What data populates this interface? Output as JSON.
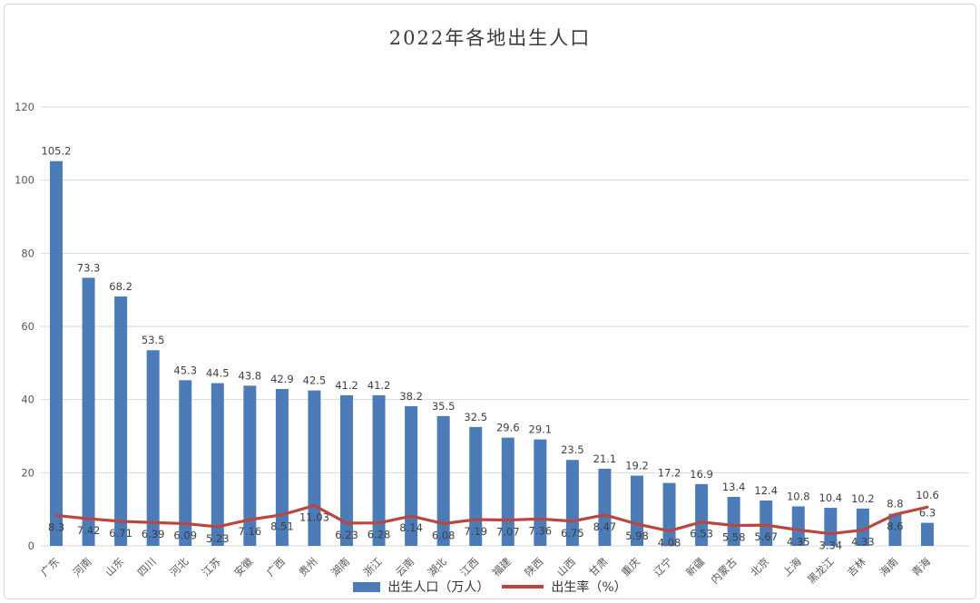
{
  "chart_data": {
    "type": "bar",
    "title": "2022年各地出生人口",
    "categories": [
      "广东",
      "河南",
      "山东",
      "四川",
      "河北",
      "江苏",
      "安徽",
      "广西",
      "贵州",
      "湖南",
      "浙江",
      "云南",
      "湖北",
      "江西",
      "福建",
      "陕西",
      "山西",
      "甘肃",
      "重庆",
      "辽宁",
      "新疆",
      "内蒙古",
      "北京",
      "上海",
      "黑龙江",
      "吉林",
      "海南",
      "青海"
    ],
    "series": [
      {
        "name": "出生人口（万人）",
        "type": "bar",
        "color": "#4b7cb8",
        "values": [
          105.2,
          73.3,
          68.2,
          53.5,
          45.3,
          44.5,
          43.8,
          42.9,
          42.5,
          41.2,
          41.2,
          38.2,
          35.5,
          32.5,
          29.6,
          29.1,
          23.5,
          21.1,
          19.2,
          17.2,
          16.9,
          13.4,
          12.4,
          10.8,
          10.4,
          10.2,
          8.8,
          6.3
        ]
      },
      {
        "name": "出生率（%）",
        "type": "line",
        "color": "#bb463f",
        "values": [
          8.3,
          7.42,
          6.71,
          6.39,
          6.09,
          5.23,
          7.16,
          8.51,
          11.03,
          6.23,
          6.28,
          8.14,
          6.08,
          7.19,
          7.07,
          7.36,
          6.75,
          8.47,
          5.98,
          4.08,
          6.53,
          5.58,
          5.67,
          4.35,
          3.34,
          4.33,
          8.6,
          10.6
        ]
      }
    ],
    "xlabel": "",
    "ylabel": "",
    "ylim": [
      0,
      120
    ],
    "yticks": [
      0,
      20,
      40,
      60,
      80,
      100,
      120
    ],
    "grid": true,
    "legend_position": "bottom",
    "colors": {
      "grid": "#d9d9d9",
      "axis_text": "#595959",
      "data_label": "#3f3f3f",
      "title_text": "#3a3a3a"
    }
  }
}
